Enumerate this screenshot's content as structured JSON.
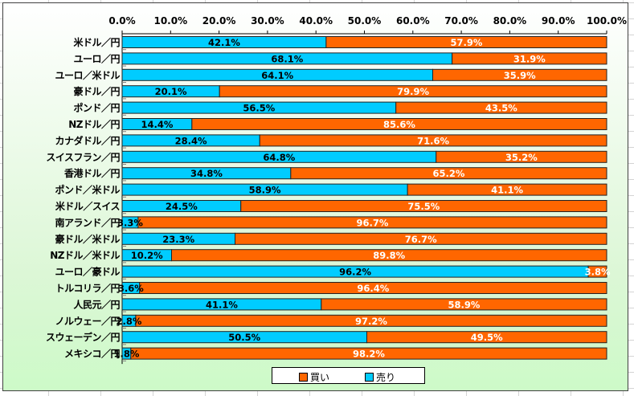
{
  "chart_data": {
    "type": "bar",
    "orientation": "horizontal",
    "stacked": "percent",
    "title": "",
    "xlabel": "",
    "ylabel": "",
    "xlim": [
      0,
      100
    ],
    "x_ticks": [
      "0.0%",
      "10.0%",
      "20.0%",
      "30.0%",
      "40.0%",
      "50.0%",
      "60.0%",
      "70.0%",
      "80.0%",
      "90.0%",
      "100.0%"
    ],
    "x_axis_position": "top",
    "grid": false,
    "legend_position": "bottom",
    "categories": [
      "米ドル／円",
      "ユーロ／円",
      "ユーロ／米ドル",
      "豪ドル／円",
      "ポンド／円",
      "NZドル／円",
      "カナダドル／円",
      "スイスフラン／円",
      "香港ドル／円",
      "ポンド／米ドル",
      "米ドル／スイス",
      "南アランド／円",
      "豪ドル／米ドル",
      "NZドル／米ドル",
      "ユーロ／豪ドル",
      "トルコリラ／円",
      "人民元／円",
      "ノルウェー／円",
      "スウェーデン／円",
      "メキシコ／円"
    ],
    "series": [
      {
        "name": "売り",
        "color": "#00ccff",
        "values": [
          42.1,
          68.1,
          64.1,
          20.1,
          56.5,
          14.4,
          28.4,
          64.8,
          34.8,
          58.9,
          24.5,
          3.3,
          23.3,
          10.2,
          96.2,
          3.6,
          41.1,
          2.8,
          50.5,
          1.8
        ]
      },
      {
        "name": "買い",
        "color": "#ff6600",
        "values": [
          57.9,
          31.9,
          35.9,
          79.9,
          43.5,
          85.6,
          71.6,
          35.2,
          65.2,
          41.1,
          75.5,
          96.7,
          76.7,
          89.8,
          3.8,
          96.4,
          58.9,
          97.2,
          49.5,
          98.2
        ]
      }
    ],
    "value_labels": {
      "sell": [
        "42.1%",
        "68.1%",
        "64.1%",
        "20.1%",
        "56.5%",
        "14.4%",
        "28.4%",
        "64.8%",
        "34.8%",
        "58.9%",
        "24.5%",
        "3.3%",
        "23.3%",
        "10.2%",
        "96.2%",
        "3.6%",
        "41.1%",
        "2.8%",
        "50.5%",
        "1.8%"
      ],
      "buy": [
        "57.9%",
        "31.9%",
        "35.9%",
        "79.9%",
        "43.5%",
        "85.6%",
        "71.6%",
        "35.2%",
        "65.2%",
        "41.1%",
        "75.5%",
        "96.7%",
        "76.7%",
        "89.8%",
        "3.8%",
        "96.4%",
        "58.9%",
        "97.2%",
        "49.5%",
        "98.2%"
      ]
    }
  },
  "legend": {
    "items": [
      {
        "label": "買い",
        "color": "#ff6600"
      },
      {
        "label": "売り",
        "color": "#00ccff"
      }
    ]
  }
}
